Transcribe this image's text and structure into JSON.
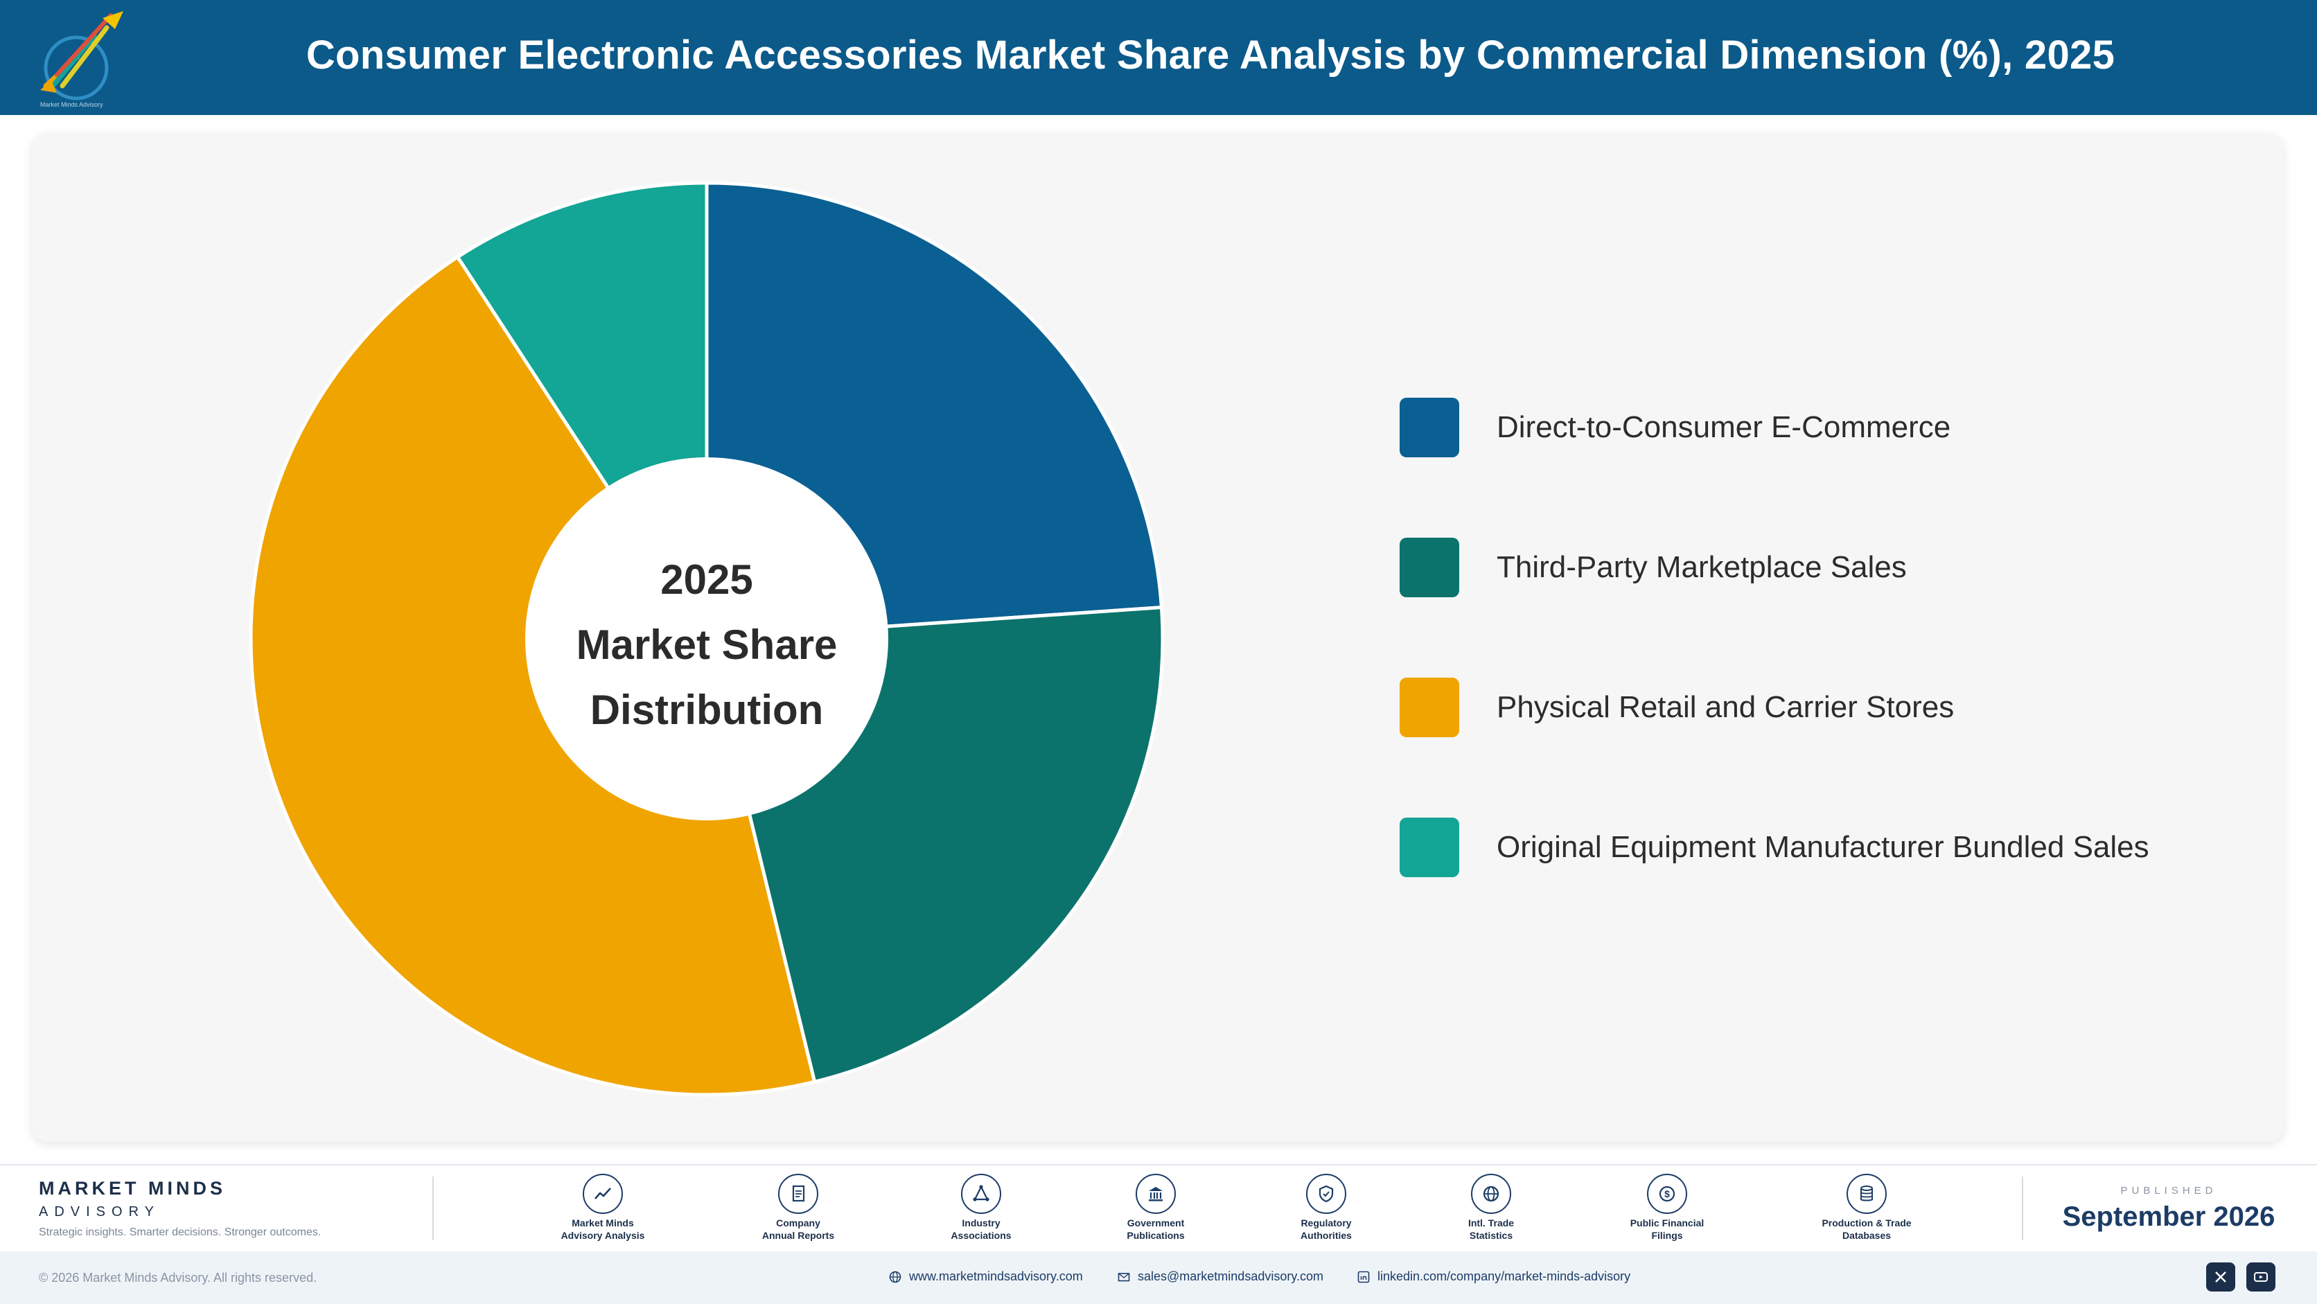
{
  "header": {
    "title": "Consumer Electronic Accessories Market Share Analysis by Commercial Dimension (%), 2025",
    "logo_text": "Market Minds Advisory",
    "background_color": "#0b5a8a"
  },
  "chart_data": {
    "type": "pie",
    "variant": "donut",
    "center_label": [
      "2025",
      "Market Share",
      "Distribution"
    ],
    "categories": [
      "Direct-to-Consumer E-Commerce",
      "Third-Party Marketplace Sales",
      "Physical Retail and Carrier Stores",
      "Original Equipment Manufacturer Bundled Sales"
    ],
    "values": [
      23.9,
      22.3,
      44.6,
      9.2
    ],
    "colors": [
      "#0a6092",
      "#0b736c",
      "#f0a400",
      "#13a595"
    ],
    "legend_position": "right"
  },
  "footer": {
    "brand_name": "MARKET MINDS",
    "brand_sub": "ADVISORY",
    "tagline": "Strategic insights. Smarter decisions. Stronger outcomes.",
    "sources": [
      {
        "line1": "Market Minds",
        "line2": "Advisory Analysis",
        "icon": "trend-icon"
      },
      {
        "line1": "Company",
        "line2": "Annual Reports",
        "icon": "document-icon"
      },
      {
        "line1": "Industry",
        "line2": "Associations",
        "icon": "network-icon"
      },
      {
        "line1": "Government",
        "line2": "Publications",
        "icon": "building-icon"
      },
      {
        "line1": "Regulatory",
        "line2": "Authorities",
        "icon": "shield-icon"
      },
      {
        "line1": "Intl. Trade",
        "line2": "Statistics",
        "icon": "globe-icon"
      },
      {
        "line1": "Public Financial",
        "line2": "Filings",
        "icon": "dollar-icon"
      },
      {
        "line1": "Production & Trade",
        "line2": "Databases",
        "icon": "database-icon"
      }
    ],
    "published_label": "PUBLISHED",
    "published_date": "September 2026"
  },
  "bottom_bar": {
    "copyright": "© 2026 Market Minds Advisory. All rights reserved.",
    "website": "www.marketmindsadvisory.com",
    "email": "sales@marketmindsadvisory.com",
    "linkedin": "linkedin.com/company/market-minds-advisory",
    "social": [
      "x-icon",
      "youtube-icon"
    ]
  }
}
